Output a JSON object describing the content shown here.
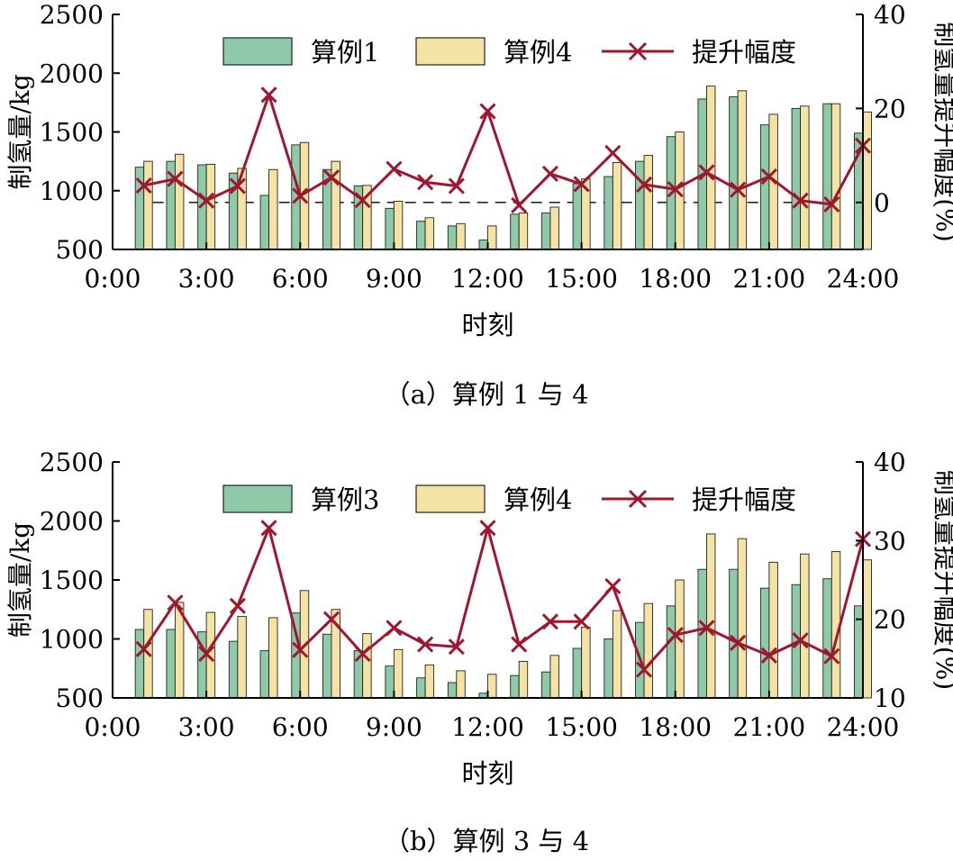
{
  "chart_data": [
    {
      "type": "bar",
      "caption": "（a）算例 1 与 4",
      "xlabel": "时刻",
      "ylabel": "制氢量/kg",
      "y2label": "制氢量提升幅度(%)",
      "ylim": [
        500,
        2500
      ],
      "yticks": [
        "500",
        "1000",
        "1500",
        "2000",
        "2500"
      ],
      "y2lim": [
        -10,
        40
      ],
      "y2ticks": [
        "0",
        "20",
        "40"
      ],
      "xlim": [
        0,
        24
      ],
      "xticks": [
        "0:00",
        "3:00",
        "6:00",
        "9:00",
        "12:00",
        "15:00",
        "18:00",
        "21:00",
        "24:00"
      ],
      "x": [
        1,
        2,
        3,
        4,
        5,
        6,
        7,
        8,
        9,
        10,
        11,
        12,
        13,
        14,
        15,
        16,
        17,
        18,
        19,
        20,
        21,
        22,
        23,
        24
      ],
      "series": [
        {
          "name": "算例1",
          "kind": "bar",
          "color": "#8fcaa8",
          "values": [
            1200,
            1250,
            1220,
            1150,
            960,
            1390,
            1180,
            1040,
            850,
            740,
            700,
            580,
            800,
            810,
            1060,
            1120,
            1250,
            1460,
            1780,
            1800,
            1560,
            1700,
            1740,
            1490
          ]
        },
        {
          "name": "算例4",
          "kind": "bar",
          "color": "#f4e3a4",
          "values": [
            1250,
            1310,
            1225,
            1190,
            1180,
            1410,
            1250,
            1045,
            910,
            770,
            720,
            700,
            810,
            860,
            1100,
            1240,
            1300,
            1500,
            1890,
            1850,
            1650,
            1720,
            1740,
            1670
          ]
        },
        {
          "name": "提升幅度",
          "kind": "line",
          "axis": "y2",
          "color": "#a0162f",
          "values": [
            3.6,
            5.0,
            0.4,
            3.5,
            22.9,
            1.4,
            5.3,
            0.5,
            7.1,
            4.3,
            3.5,
            19.4,
            -0.6,
            6.1,
            3.9,
            10.5,
            3.8,
            2.8,
            6.4,
            2.7,
            5.5,
            0.4,
            -0.4,
            12.1
          ]
        }
      ],
      "legend": [
        "算例1",
        "算例4",
        "提升幅度"
      ],
      "reference_line": {
        "axis": "y2",
        "value": 0,
        "style": "dashed"
      }
    },
    {
      "type": "bar",
      "caption": "（b）算例 3 与 4",
      "xlabel": "时刻",
      "ylabel": "制氢量/kg",
      "y2label": "制氢量提升幅度(%)",
      "ylim": [
        500,
        2500
      ],
      "yticks": [
        "500",
        "1000",
        "1500",
        "2000",
        "2500"
      ],
      "y2lim": [
        10,
        40
      ],
      "y2ticks": [
        "10",
        "20",
        "30",
        "40"
      ],
      "xlim": [
        0,
        24
      ],
      "xticks": [
        "0:00",
        "3:00",
        "6:00",
        "9:00",
        "12:00",
        "15:00",
        "18:00",
        "21:00",
        "24:00"
      ],
      "x": [
        1,
        2,
        3,
        4,
        5,
        6,
        7,
        8,
        9,
        10,
        11,
        12,
        13,
        14,
        15,
        16,
        17,
        18,
        19,
        20,
        21,
        22,
        23,
        24
      ],
      "series": [
        {
          "name": "算例3",
          "kind": "bar",
          "color": "#8fcaa8",
          "values": [
            1080,
            1080,
            1060,
            980,
            900,
            1220,
            1040,
            900,
            770,
            670,
            630,
            540,
            690,
            720,
            920,
            1000,
            1140,
            1280,
            1590,
            1590,
            1430,
            1460,
            1510,
            1280
          ]
        },
        {
          "name": "算例4",
          "kind": "bar",
          "color": "#f4e3a4",
          "values": [
            1250,
            1310,
            1225,
            1190,
            1180,
            1410,
            1250,
            1045,
            910,
            780,
            730,
            700,
            810,
            860,
            1100,
            1240,
            1300,
            1500,
            1890,
            1850,
            1650,
            1720,
            1740,
            1670
          ]
        },
        {
          "name": "提升幅度",
          "kind": "line",
          "axis": "y2",
          "color": "#a0162f",
          "values": [
            16.2,
            22.1,
            15.6,
            21.7,
            31.6,
            16.1,
            20.0,
            15.6,
            18.9,
            16.8,
            16.5,
            31.6,
            16.8,
            19.7,
            19.7,
            24.2,
            13.6,
            18.0,
            18.9,
            17.0,
            15.4,
            17.3,
            15.3,
            30.2
          ]
        }
      ],
      "legend": [
        "算例3",
        "算例4",
        "提升幅度"
      ]
    }
  ]
}
